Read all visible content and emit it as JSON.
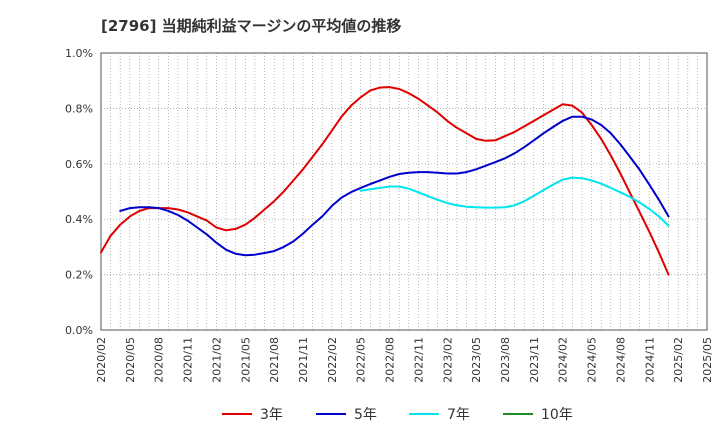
{
  "title": "[2796]  当期純利益マージンの平均値の推移",
  "chart_data": {
    "type": "line",
    "title": "[2796]  当期純利益マージンの平均値の推移",
    "ylim": [
      0,
      1.0
    ],
    "y_ticks": [
      "0.0%",
      "0.2%",
      "0.4%",
      "0.6%",
      "0.8%",
      "1.0%"
    ],
    "x_ticks": [
      "2020/02",
      "2020/05",
      "2020/08",
      "2020/11",
      "2021/02",
      "2021/05",
      "2021/08",
      "2021/11",
      "2022/02",
      "2022/05",
      "2022/08",
      "2022/11",
      "2023/02",
      "2023/05",
      "2023/08",
      "2023/11",
      "2024/02",
      "2024/05",
      "2024/08",
      "2024/11",
      "2025/02",
      "2025/05"
    ],
    "x_range": [
      "2020-02",
      "2025-05"
    ],
    "grid": true,
    "legend_position": "bottom",
    "series": [
      {
        "name": "3年",
        "color": "#e00000",
        "points": [
          [
            "2020-02",
            0.28
          ],
          [
            "2020-03",
            0.34
          ],
          [
            "2020-04",
            0.38
          ],
          [
            "2020-05",
            0.41
          ],
          [
            "2020-06",
            0.43
          ],
          [
            "2020-07",
            0.44
          ],
          [
            "2020-08",
            0.44
          ],
          [
            "2020-09",
            0.44
          ],
          [
            "2020-10",
            0.435
          ],
          [
            "2020-11",
            0.425
          ],
          [
            "2020-12",
            0.41
          ],
          [
            "2021-01",
            0.395
          ],
          [
            "2021-02",
            0.37
          ],
          [
            "2021-03",
            0.36
          ],
          [
            "2021-04",
            0.365
          ],
          [
            "2021-05",
            0.38
          ],
          [
            "2021-06",
            0.405
          ],
          [
            "2021-07",
            0.435
          ],
          [
            "2021-08",
            0.465
          ],
          [
            "2021-09",
            0.5
          ],
          [
            "2021-10",
            0.54
          ],
          [
            "2021-11",
            0.58
          ],
          [
            "2021-12",
            0.625
          ],
          [
            "2022-01",
            0.67
          ],
          [
            "2022-02",
            0.72
          ],
          [
            "2022-03",
            0.77
          ],
          [
            "2022-04",
            0.81
          ],
          [
            "2022-05",
            0.84
          ],
          [
            "2022-06",
            0.865
          ],
          [
            "2022-07",
            0.875
          ],
          [
            "2022-08",
            0.877
          ],
          [
            "2022-09",
            0.87
          ],
          [
            "2022-10",
            0.855
          ],
          [
            "2022-11",
            0.835
          ],
          [
            "2022-12",
            0.81
          ],
          [
            "2023-01",
            0.785
          ],
          [
            "2023-02",
            0.755
          ],
          [
            "2023-03",
            0.73
          ],
          [
            "2023-04",
            0.71
          ],
          [
            "2023-05",
            0.69
          ],
          [
            "2023-06",
            0.683
          ],
          [
            "2023-07",
            0.685
          ],
          [
            "2023-08",
            0.7
          ],
          [
            "2023-09",
            0.715
          ],
          [
            "2023-10",
            0.735
          ],
          [
            "2023-11",
            0.755
          ],
          [
            "2023-12",
            0.775
          ],
          [
            "2024-01",
            0.795
          ],
          [
            "2024-02",
            0.815
          ],
          [
            "2024-03",
            0.81
          ],
          [
            "2024-04",
            0.785
          ],
          [
            "2024-05",
            0.74
          ],
          [
            "2024-06",
            0.69
          ],
          [
            "2024-07",
            0.63
          ],
          [
            "2024-08",
            0.565
          ],
          [
            "2024-09",
            0.495
          ],
          [
            "2024-10",
            0.425
          ],
          [
            "2024-11",
            0.355
          ],
          [
            "2024-12",
            0.28
          ],
          [
            "2025-01",
            0.2
          ]
        ]
      },
      {
        "name": "5年",
        "color": "#0000cc",
        "points": [
          [
            "2020-04",
            0.43
          ],
          [
            "2020-05",
            0.44
          ],
          [
            "2020-06",
            0.443
          ],
          [
            "2020-07",
            0.443
          ],
          [
            "2020-08",
            0.44
          ],
          [
            "2020-09",
            0.43
          ],
          [
            "2020-10",
            0.415
          ],
          [
            "2020-11",
            0.395
          ],
          [
            "2020-12",
            0.37
          ],
          [
            "2021-01",
            0.345
          ],
          [
            "2021-02",
            0.315
          ],
          [
            "2021-03",
            0.29
          ],
          [
            "2021-04",
            0.275
          ],
          [
            "2021-05",
            0.27
          ],
          [
            "2021-06",
            0.272
          ],
          [
            "2021-07",
            0.278
          ],
          [
            "2021-08",
            0.285
          ],
          [
            "2021-09",
            0.3
          ],
          [
            "2021-10",
            0.32
          ],
          [
            "2021-11",
            0.348
          ],
          [
            "2021-12",
            0.38
          ],
          [
            "2022-01",
            0.41
          ],
          [
            "2022-02",
            0.448
          ],
          [
            "2022-03",
            0.478
          ],
          [
            "2022-04",
            0.498
          ],
          [
            "2022-05",
            0.513
          ],
          [
            "2022-06",
            0.527
          ],
          [
            "2022-07",
            0.54
          ],
          [
            "2022-08",
            0.553
          ],
          [
            "2022-09",
            0.563
          ],
          [
            "2022-10",
            0.568
          ],
          [
            "2022-11",
            0.57
          ],
          [
            "2022-12",
            0.57
          ],
          [
            "2023-01",
            0.568
          ],
          [
            "2023-02",
            0.565
          ],
          [
            "2023-03",
            0.565
          ],
          [
            "2023-04",
            0.57
          ],
          [
            "2023-05",
            0.58
          ],
          [
            "2023-06",
            0.593
          ],
          [
            "2023-07",
            0.606
          ],
          [
            "2023-08",
            0.62
          ],
          [
            "2023-09",
            0.638
          ],
          [
            "2023-10",
            0.66
          ],
          [
            "2023-11",
            0.685
          ],
          [
            "2023-12",
            0.71
          ],
          [
            "2024-01",
            0.733
          ],
          [
            "2024-02",
            0.755
          ],
          [
            "2024-03",
            0.77
          ],
          [
            "2024-04",
            0.77
          ],
          [
            "2024-05",
            0.76
          ],
          [
            "2024-06",
            0.74
          ],
          [
            "2024-07",
            0.71
          ],
          [
            "2024-08",
            0.67
          ],
          [
            "2024-09",
            0.625
          ],
          [
            "2024-10",
            0.578
          ],
          [
            "2024-11",
            0.525
          ],
          [
            "2024-12",
            0.47
          ],
          [
            "2025-01",
            0.41
          ]
        ]
      },
      {
        "name": "7年",
        "color": "#00e5ee",
        "points": [
          [
            "2022-05",
            0.503
          ],
          [
            "2022-06",
            0.508
          ],
          [
            "2022-07",
            0.513
          ],
          [
            "2022-08",
            0.518
          ],
          [
            "2022-09",
            0.518
          ],
          [
            "2022-10",
            0.51
          ],
          [
            "2022-11",
            0.497
          ],
          [
            "2022-12",
            0.483
          ],
          [
            "2023-01",
            0.47
          ],
          [
            "2023-02",
            0.458
          ],
          [
            "2023-03",
            0.45
          ],
          [
            "2023-04",
            0.445
          ],
          [
            "2023-05",
            0.443
          ],
          [
            "2023-06",
            0.442
          ],
          [
            "2023-07",
            0.442
          ],
          [
            "2023-08",
            0.443
          ],
          [
            "2023-09",
            0.45
          ],
          [
            "2023-10",
            0.465
          ],
          [
            "2023-11",
            0.485
          ],
          [
            "2023-12",
            0.505
          ],
          [
            "2024-01",
            0.525
          ],
          [
            "2024-02",
            0.543
          ],
          [
            "2024-03",
            0.55
          ],
          [
            "2024-04",
            0.548
          ],
          [
            "2024-05",
            0.54
          ],
          [
            "2024-06",
            0.528
          ],
          [
            "2024-07",
            0.513
          ],
          [
            "2024-08",
            0.497
          ],
          [
            "2024-09",
            0.48
          ],
          [
            "2024-10",
            0.46
          ],
          [
            "2024-11",
            0.437
          ],
          [
            "2024-12",
            0.41
          ],
          [
            "2025-01",
            0.377
          ]
        ]
      },
      {
        "name": "10年",
        "color": "#228b22",
        "points": []
      }
    ]
  }
}
